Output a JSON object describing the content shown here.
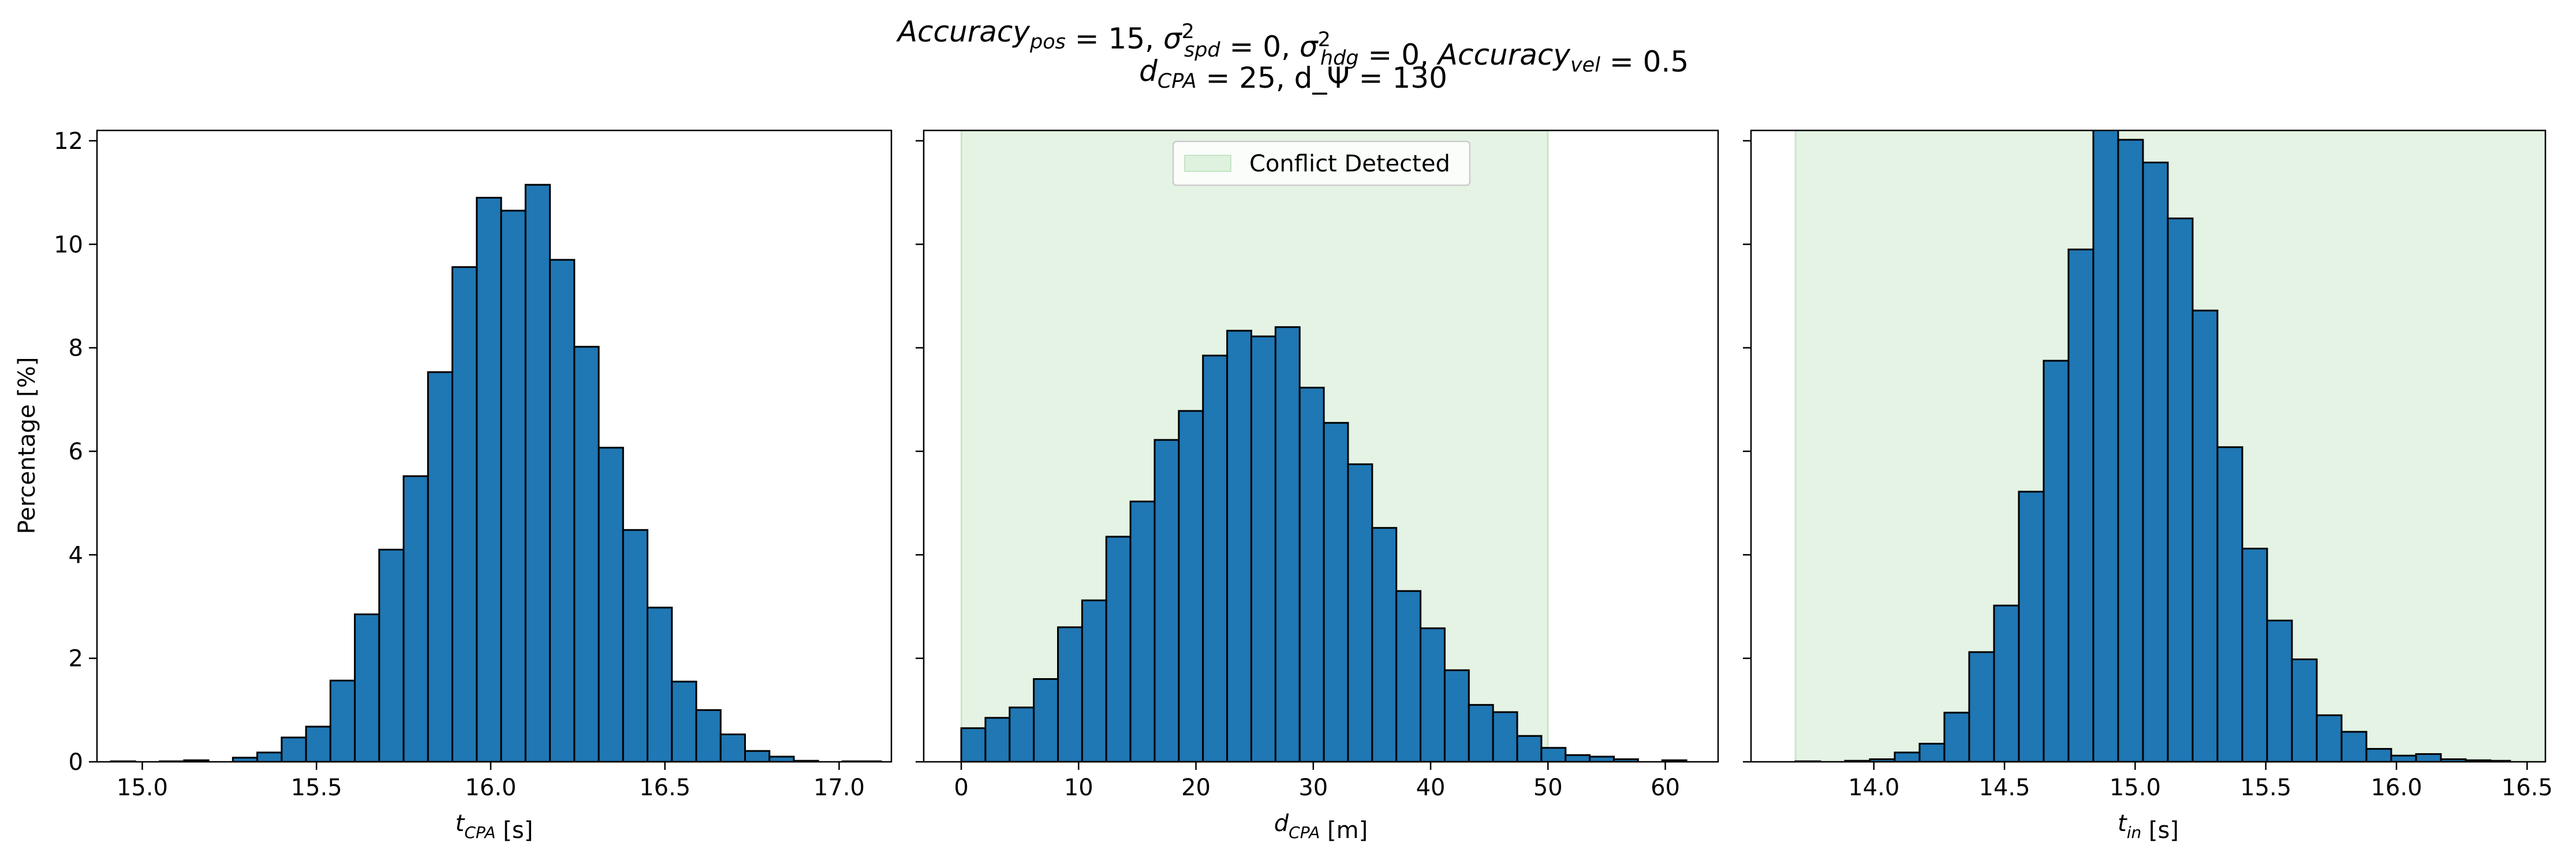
{
  "figure": {
    "title_line1": "Accuracy_pos = 15, σ²_spd = 0, σ²_hdg = 0, Accuracy_vel = 0.5",
    "title_line2": "d_CPA = 25, d_Ψ = 130"
  },
  "legend": {
    "label": "Conflict Detected"
  },
  "chart_data": [
    {
      "type": "bar",
      "title": "",
      "xlabel": "t_CPA [s]",
      "ylabel": "Percentage [%]",
      "xlim": [
        14.87,
        17.15
      ],
      "ylim": [
        0,
        12.2
      ],
      "x_ticks": [
        15.0,
        15.5,
        16.0,
        16.5,
        17.0
      ],
      "x_tick_labels": [
        "15.0",
        "15.5",
        "16.0",
        "16.5",
        "17.0"
      ],
      "y_ticks": [
        0,
        2,
        4,
        6,
        8,
        10,
        12
      ],
      "y_tick_labels": [
        "0",
        "2",
        "4",
        "6",
        "8",
        "10",
        "12"
      ],
      "bin_edges": [
        14.91,
        14.98,
        15.05,
        15.12,
        15.19,
        15.26,
        15.33,
        15.4,
        15.47,
        15.54,
        15.61,
        15.68,
        15.75,
        15.82,
        15.89,
        15.96,
        16.03,
        16.1,
        16.17,
        16.24,
        16.31,
        16.38,
        16.45,
        16.52,
        16.59,
        16.66,
        16.73,
        16.8,
        16.87,
        16.94,
        17.01,
        17.12
      ],
      "values": [
        0.01,
        0.0,
        0.01,
        0.03,
        0.0,
        0.08,
        0.18,
        0.47,
        0.68,
        1.57,
        2.85,
        4.1,
        5.52,
        7.53,
        9.56,
        10.9,
        10.65,
        11.15,
        9.7,
        8.02,
        6.07,
        4.48,
        2.98,
        1.55,
        1.0,
        0.53,
        0.21,
        0.1,
        0.02,
        0.0,
        0.01
      ],
      "bar_color": "#1f77b4"
    },
    {
      "type": "bar",
      "title": "",
      "xlabel": "d_CPA [m]",
      "ylabel": "",
      "xlim": [
        -3.2,
        64.5
      ],
      "ylim": [
        0,
        12.2
      ],
      "x_ticks": [
        0,
        10,
        20,
        30,
        40,
        50,
        60
      ],
      "x_tick_labels": [
        "0",
        "10",
        "20",
        "30",
        "40",
        "50",
        "60"
      ],
      "y_ticks": [
        0,
        2,
        4,
        6,
        8,
        10,
        12
      ],
      "shaded_region": {
        "x": [
          0,
          50
        ],
        "color": "#2ca02c",
        "label": "Conflict Detected"
      },
      "bin_edges": [
        0.0,
        2.06,
        4.12,
        6.18,
        8.24,
        10.3,
        12.36,
        14.42,
        16.48,
        18.54,
        20.6,
        22.66,
        24.72,
        26.78,
        28.84,
        30.9,
        32.96,
        35.02,
        37.08,
        39.14,
        41.2,
        43.26,
        45.32,
        47.38,
        49.44,
        51.5,
        53.56,
        55.62,
        57.68,
        59.74,
        61.8
      ],
      "values": [
        0.65,
        0.85,
        1.05,
        1.6,
        2.6,
        3.12,
        4.35,
        5.03,
        6.22,
        6.78,
        7.85,
        8.33,
        8.22,
        8.4,
        7.23,
        6.55,
        5.75,
        4.52,
        3.3,
        2.58,
        1.77,
        1.1,
        0.96,
        0.5,
        0.27,
        0.13,
        0.1,
        0.05,
        0.0,
        0.03
      ],
      "bar_color": "#1f77b4"
    },
    {
      "type": "bar",
      "title": "",
      "xlabel": "t_in [s]",
      "ylabel": "",
      "xlim": [
        13.53,
        16.57
      ],
      "ylim": [
        0,
        12.2
      ],
      "x_ticks": [
        14.0,
        14.5,
        15.0,
        15.5,
        16.0,
        16.5
      ],
      "x_tick_labels": [
        "14.0",
        "14.5",
        "15.0",
        "15.5",
        "16.0",
        "16.5"
      ],
      "y_ticks": [
        0,
        2,
        4,
        6,
        8,
        10,
        12
      ],
      "shaded_region": {
        "x": [
          13.7,
          16.6
        ],
        "color": "#2ca02c"
      },
      "bin_edges": [
        13.7,
        13.795,
        13.89,
        13.985,
        14.08,
        14.175,
        14.27,
        14.365,
        14.46,
        14.555,
        14.65,
        14.745,
        14.84,
        14.935,
        15.03,
        15.125,
        15.22,
        15.315,
        15.41,
        15.505,
        15.6,
        15.695,
        15.79,
        15.885,
        15.98,
        16.075,
        16.17,
        16.265,
        16.36,
        16.435
      ],
      "values": [
        0.01,
        0.0,
        0.02,
        0.05,
        0.18,
        0.35,
        0.95,
        2.12,
        3.02,
        5.22,
        7.75,
        9.9,
        12.25,
        12.02,
        11.58,
        10.5,
        8.72,
        6.08,
        4.12,
        2.73,
        1.98,
        0.9,
        0.58,
        0.25,
        0.12,
        0.15,
        0.05,
        0.03,
        0.02
      ],
      "bar_color": "#1f77b4"
    }
  ]
}
